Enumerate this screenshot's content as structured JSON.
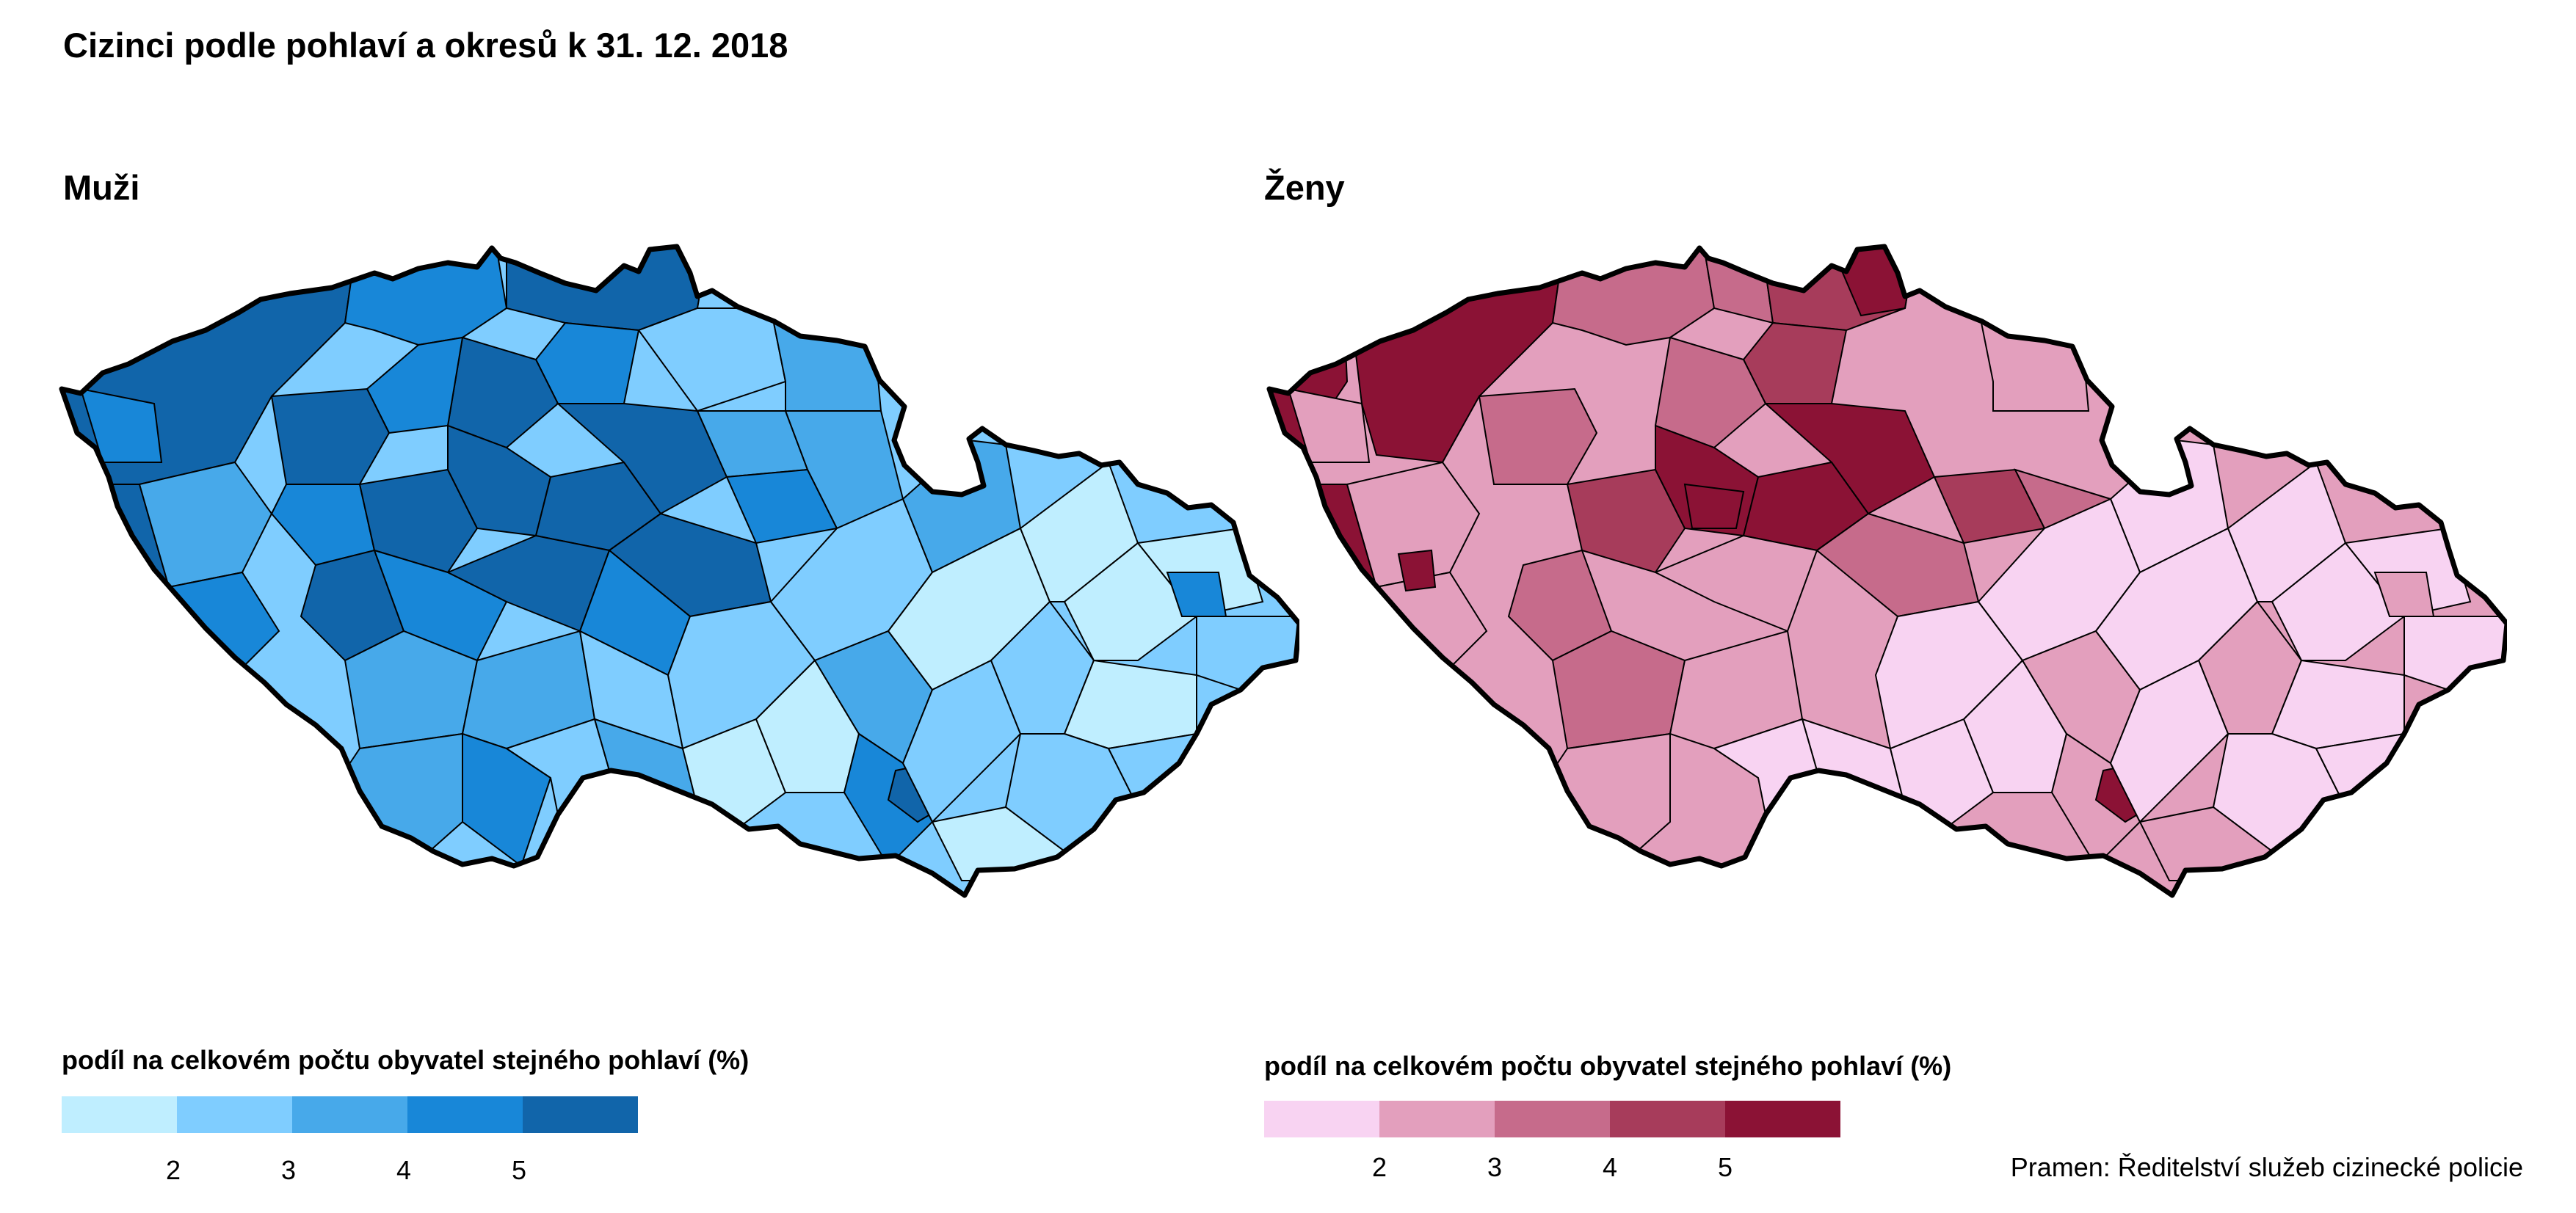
{
  "title": "Cizinci podle pohlaví a okresů k 31. 12. 2018",
  "source": "Pramen: Ředitelství služeb cizinecké policie",
  "panels": {
    "men": {
      "title": "Muži",
      "legend_title": "podíl na celkovém počtu obyvatel stejného pohlaví (%)",
      "colors": [
        "#bfeeff",
        "#7fcdff",
        "#47a9ea",
        "#1887d8",
        "#1165aa"
      ],
      "ticks": [
        "2",
        "3",
        "4",
        "5"
      ]
    },
    "women": {
      "title": "Ženy",
      "legend_title": "podíl na celkovém počtu obyvatel stejného pohlaví (%)",
      "colors": [
        "#f8d3f2",
        "#e39fbd",
        "#c66b8b",
        "#a73c5b",
        "#8b1235"
      ],
      "ticks": [
        "2",
        "3",
        "4",
        "5"
      ]
    }
  }
}
